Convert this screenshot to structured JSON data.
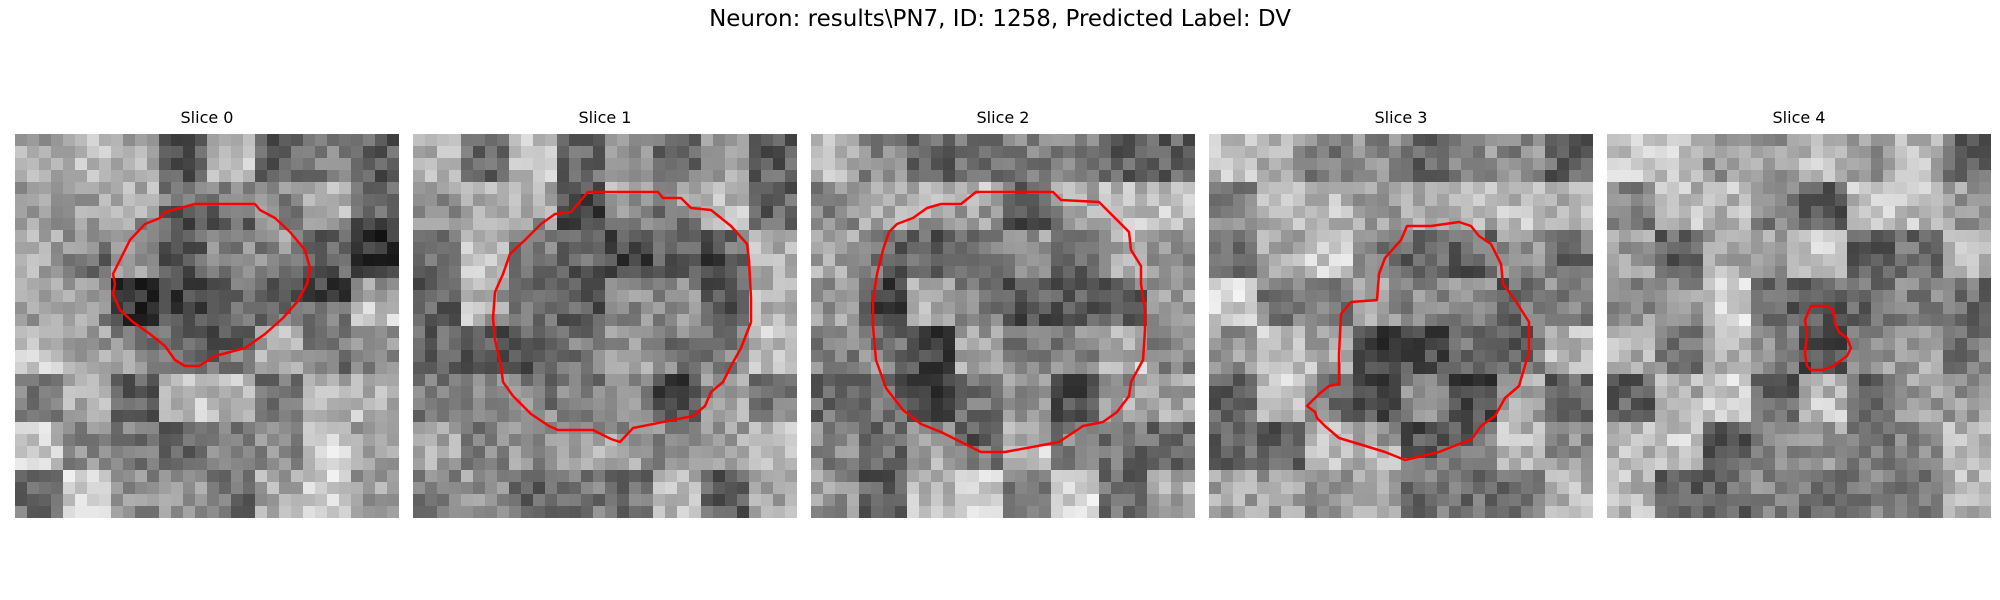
{
  "figure": {
    "title": "Neuron: results\\PN7, ID: 1258, Predicted Label: DV",
    "contour_color": "#ff0000"
  },
  "panels": [
    {
      "title": "Slice 0",
      "background": "mottled grayscale texture",
      "contour": "large"
    },
    {
      "title": "Slice 1",
      "background": "mottled grayscale texture",
      "contour": "large"
    },
    {
      "title": "Slice 2",
      "background": "mottled grayscale texture",
      "contour": "large"
    },
    {
      "title": "Slice 3",
      "background": "mottled grayscale texture",
      "contour": "large-notched"
    },
    {
      "title": "Slice 4",
      "background": "mottled grayscale texture",
      "contour": "small"
    }
  ]
}
